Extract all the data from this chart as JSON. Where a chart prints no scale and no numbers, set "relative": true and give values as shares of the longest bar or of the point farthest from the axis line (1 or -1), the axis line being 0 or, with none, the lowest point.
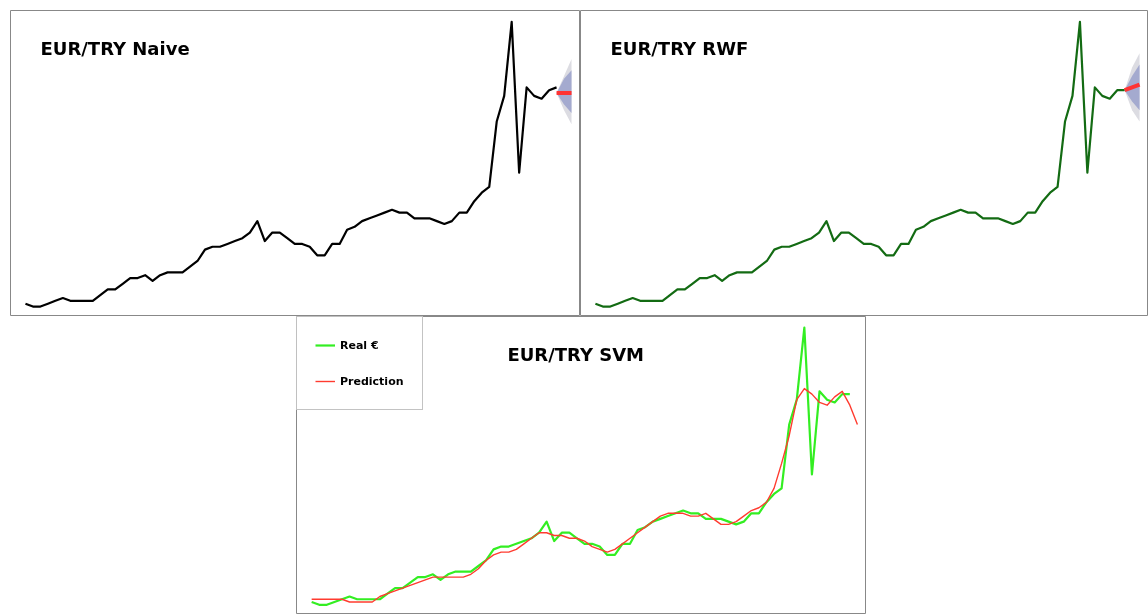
{
  "chart_data": [
    {
      "type": "line",
      "title": "EUR/TRY Naive",
      "relative": true,
      "legend": false,
      "grid": false,
      "categories": [
        null,
        null,
        null,
        null,
        null,
        null,
        null,
        null,
        null,
        null,
        null,
        null,
        null,
        null,
        null,
        null,
        null,
        null,
        null,
        null,
        null,
        null,
        null,
        null,
        null,
        null,
        null,
        null,
        null,
        null,
        null,
        null,
        null,
        null,
        null,
        null,
        null,
        null,
        null,
        null,
        null,
        null,
        null,
        null,
        null,
        null,
        null,
        null,
        null,
        null,
        null,
        null,
        null,
        null,
        null,
        null,
        null,
        null,
        null,
        null,
        null,
        null,
        null,
        null,
        null,
        null,
        null,
        null,
        null,
        null,
        null,
        null,
        null,
        null
      ],
      "series": [
        {
          "color": "#000000",
          "values": [
            0.01,
            0.0,
            0.0,
            0.01,
            0.02,
            0.03,
            0.02,
            0.02,
            0.02,
            0.02,
            0.04,
            0.06,
            0.06,
            0.08,
            0.1,
            0.1,
            0.11,
            0.09,
            0.11,
            0.12,
            0.12,
            0.12,
            0.14,
            0.16,
            0.2,
            0.21,
            0.21,
            0.22,
            0.23,
            0.24,
            0.26,
            0.3,
            0.23,
            0.26,
            0.26,
            0.24,
            0.22,
            0.22,
            0.21,
            0.18,
            0.18,
            0.22,
            0.22,
            0.27,
            0.28,
            0.3,
            0.31,
            0.32,
            0.33,
            0.34,
            0.33,
            0.33,
            0.31,
            0.31,
            0.31,
            0.3,
            0.29,
            0.3,
            0.33,
            0.33,
            0.37,
            0.4,
            0.42,
            0.65,
            0.74,
            1,
            0.47,
            0.77,
            0.74,
            0.73,
            0.76,
            0.77,
            null,
            null
          ]
        },
        {
          "color": "#ff3333",
          "values": [
            null,
            null,
            null,
            null,
            null,
            null,
            null,
            null,
            null,
            null,
            null,
            null,
            null,
            null,
            null,
            null,
            null,
            null,
            null,
            null,
            null,
            null,
            null,
            null,
            null,
            null,
            null,
            null,
            null,
            null,
            null,
            null,
            null,
            null,
            null,
            null,
            null,
            null,
            null,
            null,
            null,
            null,
            null,
            null,
            null,
            null,
            null,
            null,
            null,
            null,
            null,
            null,
            null,
            null,
            null,
            null,
            null,
            null,
            null,
            null,
            null,
            null,
            null,
            null,
            null,
            null,
            null,
            null,
            null,
            null,
            null,
            0.75,
            0.75,
            0.75
          ],
          "lower": [
            null,
            null,
            null,
            null,
            null,
            null,
            null,
            null,
            null,
            null,
            null,
            null,
            null,
            null,
            null,
            null,
            null,
            null,
            null,
            null,
            null,
            null,
            null,
            null,
            null,
            null,
            null,
            null,
            null,
            null,
            null,
            null,
            null,
            null,
            null,
            null,
            null,
            null,
            null,
            null,
            null,
            null,
            null,
            null,
            null,
            null,
            null,
            null,
            null,
            null,
            null,
            null,
            null,
            null,
            null,
            null,
            null,
            null,
            null,
            null,
            null,
            null,
            null,
            null,
            null,
            null,
            null,
            null,
            null,
            null,
            null,
            0.75,
            0.69,
            0.64
          ],
          "upper": [
            null,
            null,
            null,
            null,
            null,
            null,
            null,
            null,
            null,
            null,
            null,
            null,
            null,
            null,
            null,
            null,
            null,
            null,
            null,
            null,
            null,
            null,
            null,
            null,
            null,
            null,
            null,
            null,
            null,
            null,
            null,
            null,
            null,
            null,
            null,
            null,
            null,
            null,
            null,
            null,
            null,
            null,
            null,
            null,
            null,
            null,
            null,
            null,
            null,
            null,
            null,
            null,
            null,
            null,
            null,
            null,
            null,
            null,
            null,
            null,
            null,
            null,
            null,
            null,
            null,
            null,
            null,
            null,
            null,
            null,
            null,
            0.75,
            0.81,
            0.87
          ]
        },
        {
          "color": "#a4aacf",
          "values": [
            null,
            null,
            null,
            null,
            null,
            null,
            null,
            null,
            null,
            null,
            null,
            null,
            null,
            null,
            null,
            null,
            null,
            null,
            null,
            null,
            null,
            null,
            null,
            null,
            null,
            null,
            null,
            null,
            null,
            null,
            null,
            null,
            null,
            null,
            null,
            null,
            null,
            null,
            null,
            null,
            null,
            null,
            null,
            null,
            null,
            null,
            null,
            null,
            null,
            null,
            null,
            null,
            null,
            null,
            null,
            null,
            null,
            null,
            null,
            null,
            null,
            null,
            null,
            null,
            null,
            null,
            null,
            null,
            null,
            null,
            null,
            null,
            null,
            null
          ],
          "lower": [
            null,
            null,
            null,
            null,
            null,
            null,
            null,
            null,
            null,
            null,
            null,
            null,
            null,
            null,
            null,
            null,
            null,
            null,
            null,
            null,
            null,
            null,
            null,
            null,
            null,
            null,
            null,
            null,
            null,
            null,
            null,
            null,
            null,
            null,
            null,
            null,
            null,
            null,
            null,
            null,
            null,
            null,
            null,
            null,
            null,
            null,
            null,
            null,
            null,
            null,
            null,
            null,
            null,
            null,
            null,
            null,
            null,
            null,
            null,
            null,
            null,
            null,
            null,
            null,
            null,
            null,
            null,
            null,
            null,
            null,
            null,
            0.75,
            0.71,
            0.68
          ],
          "upper": [
            null,
            null,
            null,
            null,
            null,
            null,
            null,
            null,
            null,
            null,
            null,
            null,
            null,
            null,
            null,
            null,
            null,
            null,
            null,
            null,
            null,
            null,
            null,
            null,
            null,
            null,
            null,
            null,
            null,
            null,
            null,
            null,
            null,
            null,
            null,
            null,
            null,
            null,
            null,
            null,
            null,
            null,
            null,
            null,
            null,
            null,
            null,
            null,
            null,
            null,
            null,
            null,
            null,
            null,
            null,
            null,
            null,
            null,
            null,
            null,
            null,
            null,
            null,
            null,
            null,
            null,
            null,
            null,
            null,
            null,
            null,
            0.75,
            0.8,
            0.83
          ]
        }
      ]
    },
    {
      "type": "line",
      "title": "EUR/TRY RWF",
      "relative": true,
      "legend": false,
      "grid": false,
      "categories": [
        null,
        null,
        null,
        null,
        null,
        null,
        null,
        null,
        null,
        null,
        null,
        null,
        null,
        null,
        null,
        null,
        null,
        null,
        null,
        null,
        null,
        null,
        null,
        null,
        null,
        null,
        null,
        null,
        null,
        null,
        null,
        null,
        null,
        null,
        null,
        null,
        null,
        null,
        null,
        null,
        null,
        null,
        null,
        null,
        null,
        null,
        null,
        null,
        null,
        null,
        null,
        null,
        null,
        null,
        null,
        null,
        null,
        null,
        null,
        null,
        null,
        null,
        null,
        null,
        null,
        null,
        null,
        null,
        null,
        null,
        null,
        null,
        null,
        null
      ],
      "series": [
        {
          "color": "#136b13",
          "values": [
            0.01,
            0.0,
            0.0,
            0.01,
            0.02,
            0.03,
            0.02,
            0.02,
            0.02,
            0.02,
            0.04,
            0.06,
            0.06,
            0.08,
            0.1,
            0.1,
            0.11,
            0.09,
            0.11,
            0.12,
            0.12,
            0.12,
            0.14,
            0.16,
            0.2,
            0.21,
            0.21,
            0.22,
            0.23,
            0.24,
            0.26,
            0.3,
            0.23,
            0.26,
            0.26,
            0.24,
            0.22,
            0.22,
            0.21,
            0.18,
            0.18,
            0.22,
            0.22,
            0.27,
            0.28,
            0.3,
            0.31,
            0.32,
            0.33,
            0.34,
            0.33,
            0.33,
            0.31,
            0.31,
            0.31,
            0.3,
            0.29,
            0.3,
            0.33,
            0.33,
            0.37,
            0.4,
            0.42,
            0.65,
            0.74,
            1,
            0.47,
            0.77,
            0.74,
            0.73,
            0.76,
            0.76,
            null,
            null
          ]
        },
        {
          "color": "#ff3333",
          "values": [
            null,
            null,
            null,
            null,
            null,
            null,
            null,
            null,
            null,
            null,
            null,
            null,
            null,
            null,
            null,
            null,
            null,
            null,
            null,
            null,
            null,
            null,
            null,
            null,
            null,
            null,
            null,
            null,
            null,
            null,
            null,
            null,
            null,
            null,
            null,
            null,
            null,
            null,
            null,
            null,
            null,
            null,
            null,
            null,
            null,
            null,
            null,
            null,
            null,
            null,
            null,
            null,
            null,
            null,
            null,
            null,
            null,
            null,
            null,
            null,
            null,
            null,
            null,
            null,
            null,
            null,
            null,
            null,
            null,
            null,
            null,
            0.76,
            0.77,
            0.78
          ],
          "lower": [
            null,
            null,
            null,
            null,
            null,
            null,
            null,
            null,
            null,
            null,
            null,
            null,
            null,
            null,
            null,
            null,
            null,
            null,
            null,
            null,
            null,
            null,
            null,
            null,
            null,
            null,
            null,
            null,
            null,
            null,
            null,
            null,
            null,
            null,
            null,
            null,
            null,
            null,
            null,
            null,
            null,
            null,
            null,
            null,
            null,
            null,
            null,
            null,
            null,
            null,
            null,
            null,
            null,
            null,
            null,
            null,
            null,
            null,
            null,
            null,
            null,
            null,
            null,
            null,
            null,
            null,
            null,
            null,
            null,
            null,
            null,
            0.76,
            0.69,
            0.65
          ],
          "upper": [
            null,
            null,
            null,
            null,
            null,
            null,
            null,
            null,
            null,
            null,
            null,
            null,
            null,
            null,
            null,
            null,
            null,
            null,
            null,
            null,
            null,
            null,
            null,
            null,
            null,
            null,
            null,
            null,
            null,
            null,
            null,
            null,
            null,
            null,
            null,
            null,
            null,
            null,
            null,
            null,
            null,
            null,
            null,
            null,
            null,
            null,
            null,
            null,
            null,
            null,
            null,
            null,
            null,
            null,
            null,
            null,
            null,
            null,
            null,
            null,
            null,
            null,
            null,
            null,
            null,
            null,
            null,
            null,
            null,
            null,
            null,
            0.76,
            0.84,
            0.89
          ]
        },
        {
          "color": "#a4aacf",
          "values": [
            null,
            null,
            null,
            null,
            null,
            null,
            null,
            null,
            null,
            null,
            null,
            null,
            null,
            null,
            null,
            null,
            null,
            null,
            null,
            null,
            null,
            null,
            null,
            null,
            null,
            null,
            null,
            null,
            null,
            null,
            null,
            null,
            null,
            null,
            null,
            null,
            null,
            null,
            null,
            null,
            null,
            null,
            null,
            null,
            null,
            null,
            null,
            null,
            null,
            null,
            null,
            null,
            null,
            null,
            null,
            null,
            null,
            null,
            null,
            null,
            null,
            null,
            null,
            null,
            null,
            null,
            null,
            null,
            null,
            null,
            null,
            null,
            null,
            null
          ],
          "lower": [
            null,
            null,
            null,
            null,
            null,
            null,
            null,
            null,
            null,
            null,
            null,
            null,
            null,
            null,
            null,
            null,
            null,
            null,
            null,
            null,
            null,
            null,
            null,
            null,
            null,
            null,
            null,
            null,
            null,
            null,
            null,
            null,
            null,
            null,
            null,
            null,
            null,
            null,
            null,
            null,
            null,
            null,
            null,
            null,
            null,
            null,
            null,
            null,
            null,
            null,
            null,
            null,
            null,
            null,
            null,
            null,
            null,
            null,
            null,
            null,
            null,
            null,
            null,
            null,
            null,
            null,
            null,
            null,
            null,
            null,
            null,
            0.76,
            0.72,
            0.69
          ],
          "upper": [
            null,
            null,
            null,
            null,
            null,
            null,
            null,
            null,
            null,
            null,
            null,
            null,
            null,
            null,
            null,
            null,
            null,
            null,
            null,
            null,
            null,
            null,
            null,
            null,
            null,
            null,
            null,
            null,
            null,
            null,
            null,
            null,
            null,
            null,
            null,
            null,
            null,
            null,
            null,
            null,
            null,
            null,
            null,
            null,
            null,
            null,
            null,
            null,
            null,
            null,
            null,
            null,
            null,
            null,
            null,
            null,
            null,
            null,
            null,
            null,
            null,
            null,
            null,
            null,
            null,
            null,
            null,
            null,
            null,
            null,
            null,
            0.76,
            0.81,
            0.85
          ]
        }
      ]
    },
    {
      "type": "line",
      "title": "EUR/TRY SVM",
      "relative": true,
      "legend": "top left",
      "grid": false,
      "categories": [
        null,
        null,
        null,
        null,
        null,
        null,
        null,
        null,
        null,
        null,
        null,
        null,
        null,
        null,
        null,
        null,
        null,
        null,
        null,
        null,
        null,
        null,
        null,
        null,
        null,
        null,
        null,
        null,
        null,
        null,
        null,
        null,
        null,
        null,
        null,
        null,
        null,
        null,
        null,
        null,
        null,
        null,
        null,
        null,
        null,
        null,
        null,
        null,
        null,
        null,
        null,
        null,
        null,
        null,
        null,
        null,
        null,
        null,
        null,
        null,
        null,
        null,
        null,
        null,
        null,
        null,
        null,
        null,
        null,
        null,
        null,
        null,
        null
      ],
      "series": [
        {
          "name": "Real €",
          "color": "#33ee22",
          "values": [
            0.01,
            0.0,
            0.0,
            0.01,
            0.02,
            0.03,
            0.02,
            0.02,
            0.02,
            0.02,
            0.04,
            0.06,
            0.06,
            0.08,
            0.1,
            0.1,
            0.11,
            0.09,
            0.11,
            0.12,
            0.12,
            0.12,
            0.14,
            0.16,
            0.2,
            0.21,
            0.21,
            0.22,
            0.23,
            0.24,
            0.26,
            0.3,
            0.23,
            0.26,
            0.26,
            0.24,
            0.22,
            0.22,
            0.21,
            0.18,
            0.18,
            0.22,
            0.22,
            0.27,
            0.28,
            0.3,
            0.31,
            0.32,
            0.33,
            0.34,
            0.33,
            0.33,
            0.31,
            0.31,
            0.31,
            0.3,
            0.29,
            0.3,
            0.33,
            0.33,
            0.37,
            0.4,
            0.42,
            0.65,
            0.74,
            1,
            0.47,
            0.77,
            0.74,
            0.73,
            0.76,
            0.76,
            null
          ]
        },
        {
          "name": "Prediction",
          "color": "#ff3b2f",
          "values": [
            0.02,
            0.02,
            0.02,
            0.02,
            0.02,
            0.01,
            0.01,
            0.01,
            0.01,
            0.03,
            0.04,
            0.05,
            0.06,
            0.07,
            0.08,
            0.09,
            0.1,
            0.1,
            0.1,
            0.1,
            0.1,
            0.11,
            0.13,
            0.16,
            0.18,
            0.19,
            0.19,
            0.2,
            0.22,
            0.24,
            0.26,
            0.26,
            0.25,
            0.25,
            0.24,
            0.24,
            0.23,
            0.21,
            0.2,
            0.19,
            0.2,
            0.22,
            0.24,
            0.26,
            0.28,
            0.3,
            0.32,
            0.33,
            0.33,
            0.33,
            0.32,
            0.32,
            0.33,
            0.31,
            0.29,
            0.29,
            0.3,
            0.32,
            0.34,
            0.35,
            0.37,
            0.42,
            0.51,
            0.61,
            0.74,
            0.78,
            0.76,
            0.73,
            0.72,
            0.75,
            0.77,
            0.72,
            0.65
          ]
        }
      ]
    }
  ]
}
